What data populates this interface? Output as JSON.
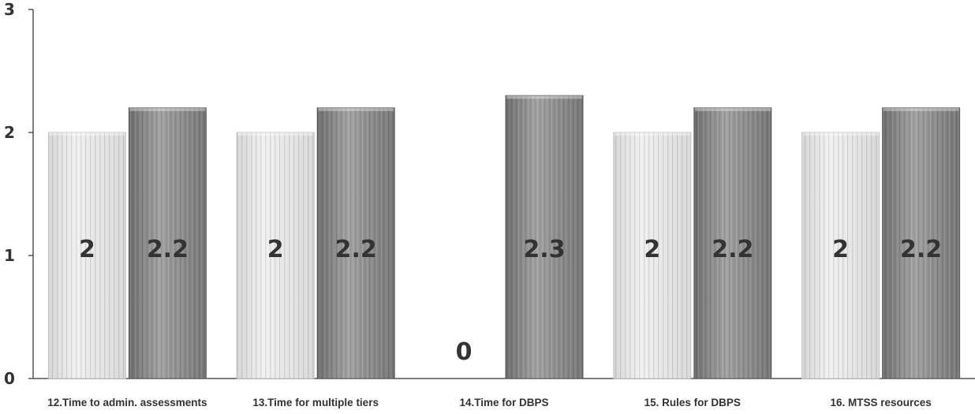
{
  "chart_data": {
    "type": "bar",
    "categories": [
      "12.Time to admin. assessments",
      "13.Time for multiple tiers",
      "14.Time for DBPS",
      "15. Rules for DBPS",
      "16. MTSS resources"
    ],
    "series": [
      {
        "values": [
          2,
          2,
          0,
          2,
          2
        ],
        "data_labels": [
          "2",
          "2",
          "0",
          "2",
          "2"
        ]
      },
      {
        "values": [
          2.2,
          2.2,
          2.3,
          2.2,
          2.2
        ],
        "data_labels": [
          "2.2",
          "2.2",
          "2.3",
          "2.2",
          "2.2"
        ]
      }
    ],
    "y_ticks": [
      "0",
      "1",
      "2",
      "3"
    ],
    "ylim": [
      0,
      3
    ],
    "grid": false,
    "legend": "none",
    "title": "",
    "xlabel": "",
    "ylabel": "",
    "colors": [
      "#e4e4e4",
      "#8e8e8e"
    ]
  }
}
